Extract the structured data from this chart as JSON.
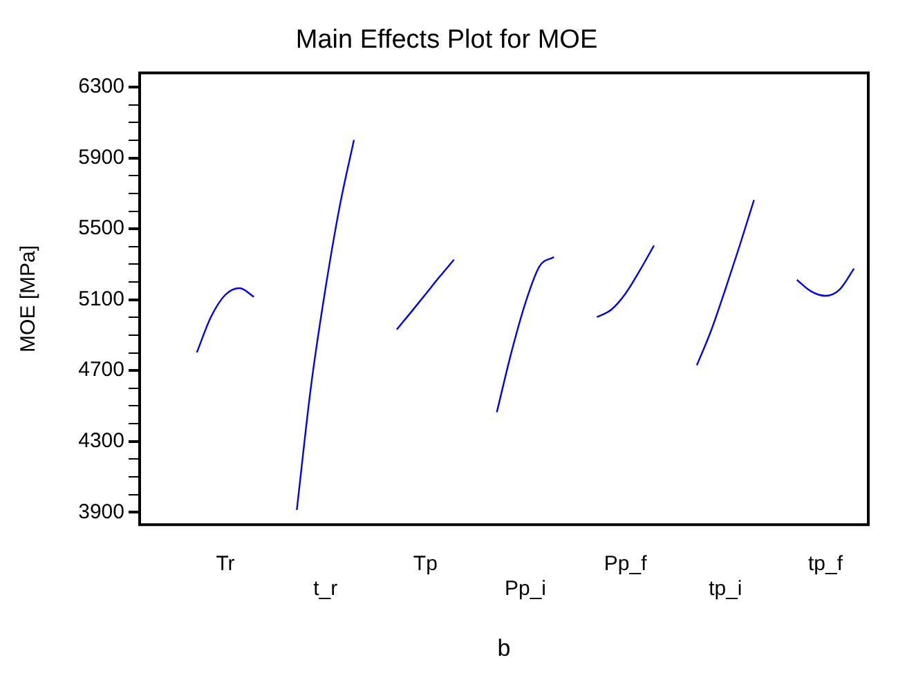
{
  "chart_data": {
    "type": "line",
    "title": "Main Effects Plot for MOE",
    "xlabel": "b",
    "ylabel": "MOE [MPa]",
    "categories": [
      null,
      null,
      null,
      null,
      null,
      null,
      "Tr",
      null,
      null,
      null,
      null,
      null,
      null,
      "t_r",
      null,
      null,
      null,
      null,
      null,
      null,
      "Tp",
      null,
      null,
      null,
      null,
      null,
      null,
      "Pp_i",
      null,
      null,
      null,
      null,
      null,
      null,
      "Pp_f",
      null,
      null,
      null,
      null,
      null,
      null,
      "tp_i",
      null,
      null,
      null,
      null,
      null,
      null,
      "tp_f",
      null,
      null,
      null
    ],
    "series": [
      {
        "color": "#0000ff",
        "values": [
          null,
          null,
          null,
          null,
          4802,
          5004,
          5128,
          5165,
          5116,
          null,
          null,
          null,
          null,
          null,
          null,
          null,
          null,
          null,
          null,
          null,
          null,
          null,
          null,
          null,
          null,
          null,
          null,
          null,
          null,
          null,
          null,
          null,
          null,
          null,
          null,
          null,
          null,
          null,
          null,
          null,
          null,
          null,
          null,
          null,
          null,
          null,
          null,
          null,
          null,
          null,
          null,
          null
        ]
      },
      {
        "color": "#0000ff",
        "values": [
          null,
          null,
          null,
          null,
          null,
          null,
          null,
          null,
          null,
          null,
          null,
          3913,
          4615,
          5160,
          5626,
          6002,
          null,
          null,
          null,
          null,
          null,
          null,
          null,
          null,
          null,
          null,
          null,
          null,
          null,
          null,
          null,
          null,
          null,
          null,
          null,
          null,
          null,
          null,
          null,
          null,
          null,
          null,
          null,
          null,
          null,
          null,
          null,
          null,
          null,
          null,
          null,
          null
        ]
      },
      {
        "color": "#0000ff",
        "values": [
          null,
          null,
          null,
          null,
          null,
          null,
          null,
          null,
          null,
          null,
          null,
          null,
          null,
          null,
          null,
          null,
          null,
          null,
          4932,
          5030,
          5130,
          5230,
          5326,
          null,
          null,
          null,
          null,
          null,
          null,
          null,
          null,
          null,
          null,
          null,
          null,
          null,
          null,
          null,
          null,
          null,
          null,
          null,
          null,
          null,
          null,
          null,
          null,
          null,
          null,
          null,
          null,
          null
        ]
      },
      {
        "color": "#0000ff",
        "values": [
          null,
          null,
          null,
          null,
          null,
          null,
          null,
          null,
          null,
          null,
          null,
          null,
          null,
          null,
          null,
          null,
          null,
          null,
          null,
          null,
          null,
          null,
          null,
          null,
          null,
          4465,
          4797,
          5082,
          5290,
          5341,
          null,
          null,
          null,
          null,
          null,
          null,
          null,
          null,
          null,
          null,
          null,
          null,
          null,
          null,
          null,
          null,
          null,
          null,
          null,
          null,
          null,
          null
        ]
      },
      {
        "color": "#0000ff",
        "values": [
          null,
          null,
          null,
          null,
          null,
          null,
          null,
          null,
          null,
          null,
          null,
          null,
          null,
          null,
          null,
          null,
          null,
          null,
          null,
          null,
          null,
          null,
          null,
          null,
          null,
          null,
          null,
          null,
          null,
          null,
          null,
          null,
          5002,
          5043,
          5134,
          5264,
          5406,
          null,
          null,
          null,
          null,
          null,
          null,
          null,
          null,
          null,
          null,
          null,
          null,
          null,
          null,
          null
        ]
      },
      {
        "color": "#0000ff",
        "values": [
          null,
          null,
          null,
          null,
          null,
          null,
          null,
          null,
          null,
          null,
          null,
          null,
          null,
          null,
          null,
          null,
          null,
          null,
          null,
          null,
          null,
          null,
          null,
          null,
          null,
          null,
          null,
          null,
          null,
          null,
          null,
          null,
          null,
          null,
          null,
          null,
          null,
          null,
          null,
          4730,
          4926,
          5160,
          5406,
          5663,
          null,
          null,
          null,
          null,
          null,
          null,
          null,
          null
        ]
      },
      {
        "color": "#0000ff",
        "values": [
          null,
          null,
          null,
          null,
          null,
          null,
          null,
          null,
          null,
          null,
          null,
          null,
          null,
          null,
          null,
          null,
          null,
          null,
          null,
          null,
          null,
          null,
          null,
          null,
          null,
          null,
          null,
          null,
          null,
          null,
          null,
          null,
          null,
          null,
          null,
          null,
          null,
          null,
          null,
          null,
          null,
          null,
          null,
          null,
          null,
          null,
          5212,
          5147,
          5122,
          5158,
          5276,
          null
        ]
      }
    ],
    "ylim": [
      3830,
      6380
    ],
    "yticks": [
      3900,
      {
        "value": 4000,
        "label": null
      },
      {
        "value": 4100,
        "label": null
      },
      {
        "value": 4200,
        "label": null
      },
      4300,
      {
        "value": 4400,
        "label": null
      },
      {
        "value": 4500,
        "label": null
      },
      {
        "value": 4600,
        "label": null
      },
      4700,
      {
        "value": 4800,
        "label": null
      },
      {
        "value": 4900,
        "label": null
      },
      {
        "value": 5000,
        "label": null
      },
      5100,
      {
        "value": 5200,
        "label": null
      },
      {
        "value": 5300,
        "label": null
      },
      {
        "value": 5400,
        "label": null
      },
      5500,
      {
        "value": 5600,
        "label": null
      },
      {
        "value": 5700,
        "label": null
      },
      {
        "value": 5800,
        "label": null
      },
      5900,
      {
        "value": 6000,
        "label": null
      },
      {
        "value": 6100,
        "label": null
      },
      {
        "value": 6200,
        "label": null
      },
      6300
    ]
  }
}
